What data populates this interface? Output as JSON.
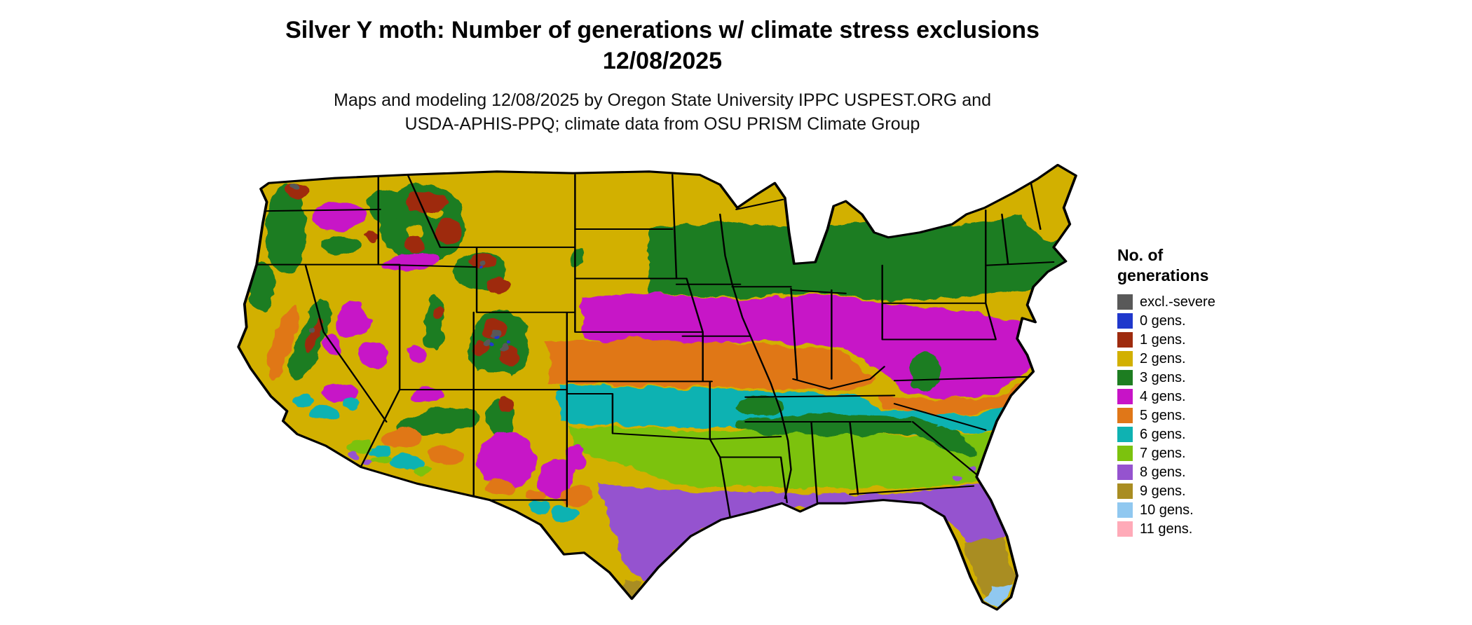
{
  "header": {
    "title_line1": "Silver Y moth: Number of generations w/ climate stress exclusions",
    "title_line2": "12/08/2025",
    "subtitle_line1": "Maps and modeling 12/08/2025 by Oregon State University IPPC USPEST.ORG and",
    "subtitle_line2": "USDA-APHIS-PPQ; climate data from OSU PRISM Climate Group"
  },
  "legend": {
    "title_line1": "No. of",
    "title_line2": "generations",
    "entries": [
      {
        "key": "severe",
        "label": "excl.-severe",
        "color": "#595959"
      },
      {
        "key": "0",
        "label": "0 gens.",
        "color": "#2038cc"
      },
      {
        "key": "1",
        "label": "1 gens.",
        "color": "#9e2b0e"
      },
      {
        "key": "2",
        "label": "2 gens.",
        "color": "#d2b000"
      },
      {
        "key": "3",
        "label": "3 gens.",
        "color": "#1d7d21"
      },
      {
        "key": "4",
        "label": "4 gens.",
        "color": "#c713c7"
      },
      {
        "key": "5",
        "label": "5 gens.",
        "color": "#e07718"
      },
      {
        "key": "6",
        "label": "6 gens.",
        "color": "#0fb2b2"
      },
      {
        "key": "7",
        "label": "7 gens.",
        "color": "#7cc20e"
      },
      {
        "key": "8",
        "label": "8 gens.",
        "color": "#9553cf"
      },
      {
        "key": "9",
        "label": "9 gens.",
        "color": "#a98d22"
      },
      {
        "key": "10",
        "label": "10 gens.",
        "color": "#90c8f0"
      },
      {
        "key": "11",
        "label": "11 gens.",
        "color": "#ffaab8"
      }
    ]
  },
  "map": {
    "border_color": "#000000",
    "background": "#ffffff"
  }
}
